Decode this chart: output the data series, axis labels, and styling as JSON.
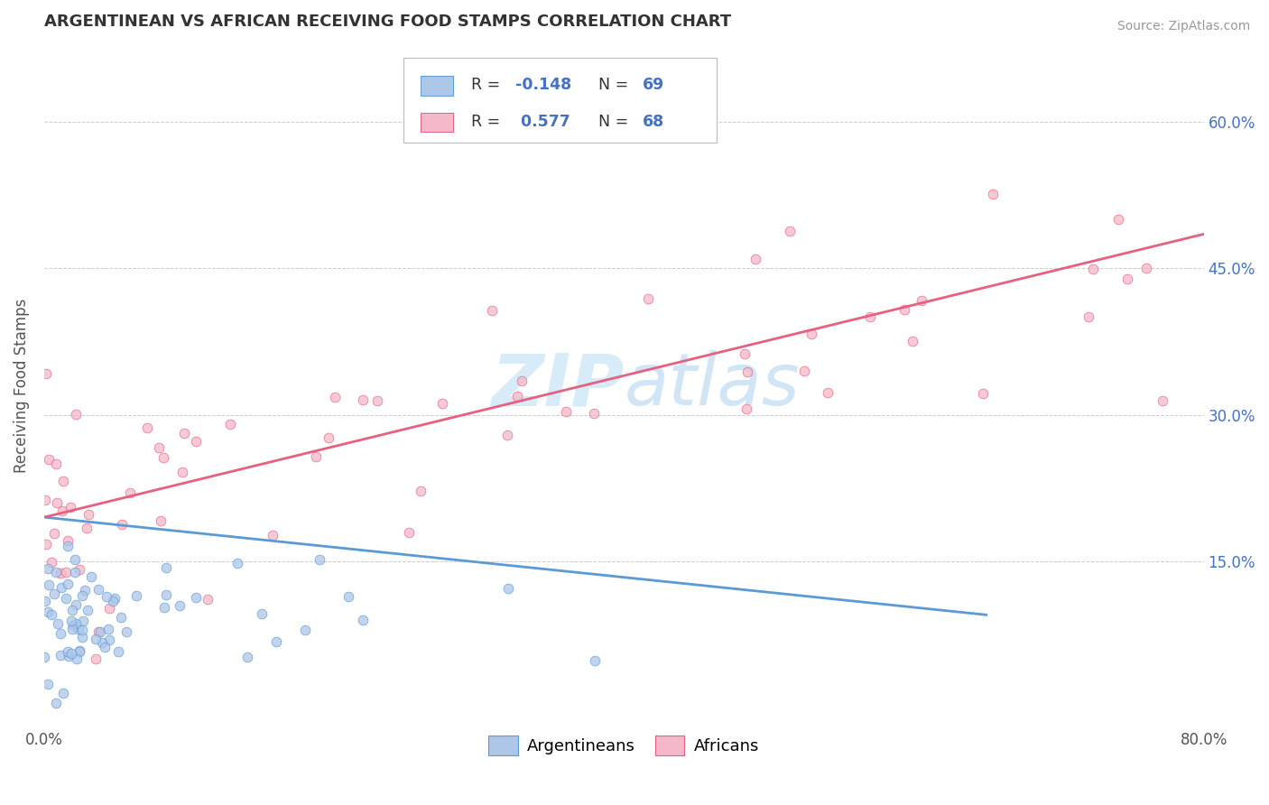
{
  "title": "ARGENTINEAN VS AFRICAN RECEIVING FOOD STAMPS CORRELATION CHART",
  "source": "Source: ZipAtlas.com",
  "ylabel": "Receiving Food Stamps",
  "xlim": [
    0.0,
    0.8
  ],
  "ylim": [
    -0.02,
    0.68
  ],
  "ytick_vals": [
    0.15,
    0.3,
    0.45,
    0.6
  ],
  "ytick_labels_right": [
    "15.0%",
    "30.0%",
    "45.0%",
    "60.0%"
  ],
  "xtick_vals": [
    0.0,
    0.8
  ],
  "xtick_labels": [
    "0.0%",
    "80.0%"
  ],
  "color_arg_fill": "#aec6e8",
  "color_arg_edge": "#5b9bd5",
  "color_afr_fill": "#f5b8c8",
  "color_afr_edge": "#e86080",
  "color_arg_line": "#5b9bd5",
  "color_afr_line": "#e86080",
  "watermark_color": "#d0e8f8",
  "background_color": "#ffffff",
  "grid_color": "#cccccc",
  "legend_label_arg": "Argentineans",
  "legend_label_afr": "Africans",
  "title_color": "#333333",
  "source_color": "#999999",
  "right_tick_color": "#4472c4",
  "dot_size": 60,
  "dot_alpha": 0.75,
  "arg_trend_start_x": 0.0,
  "arg_trend_start_y": 0.195,
  "arg_trend_end_x": 0.65,
  "arg_trend_end_y": 0.095,
  "afr_trend_start_x": 0.0,
  "afr_trend_start_y": 0.195,
  "afr_trend_end_x": 0.8,
  "afr_trend_end_y": 0.485
}
